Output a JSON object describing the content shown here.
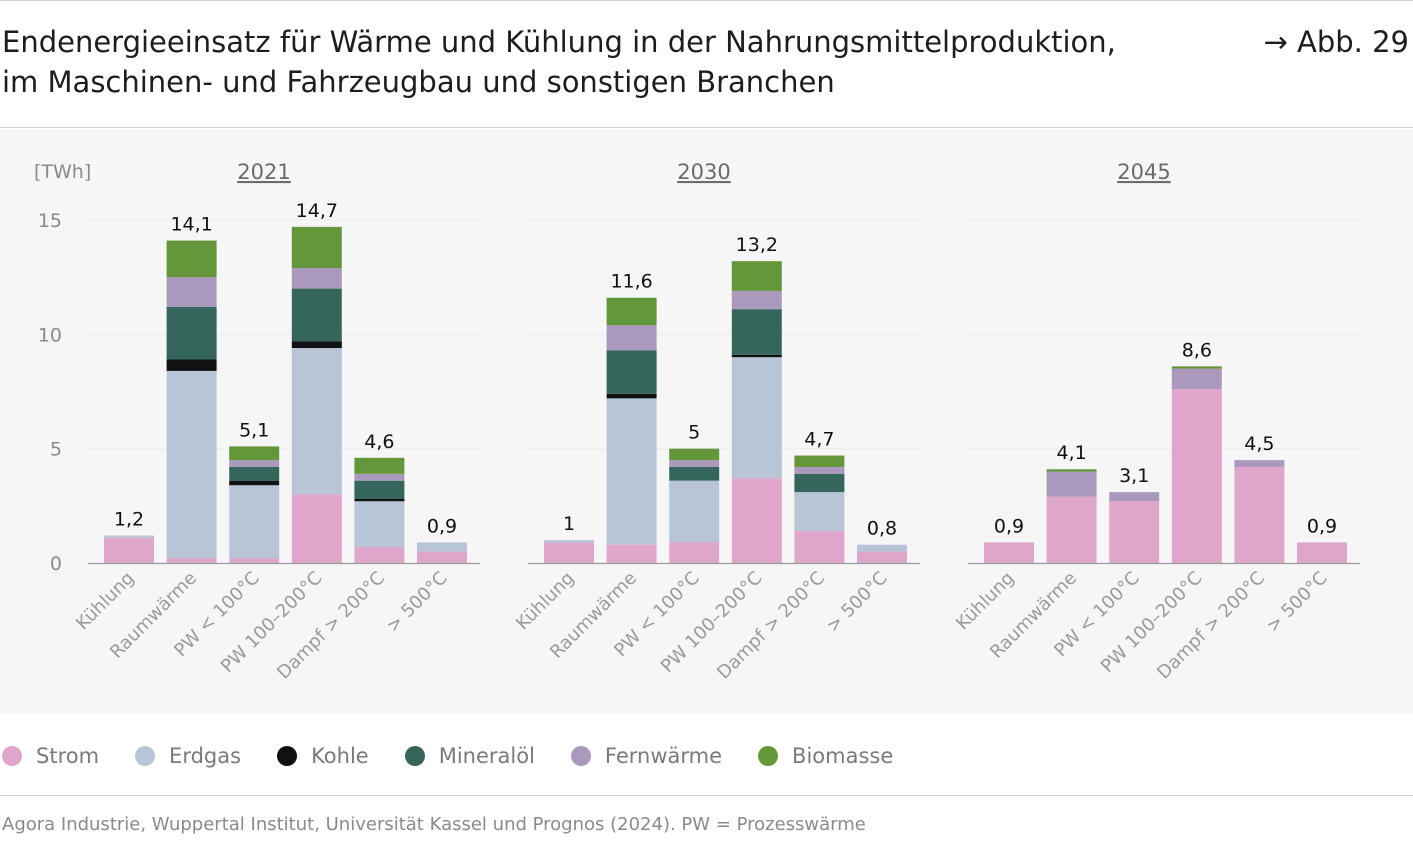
{
  "header": {
    "title_line1": "Endenergieeinsatz für Wärme und Kühlung in der Nahrungsmittelproduktion,",
    "title_line2": "im Maschinen- und Fahrzeugbau und sonstigen Branchen",
    "figure_ref": "→ Abb. 29"
  },
  "source": "Agora Industrie, Wuppertal Institut, Universität Kassel und Prognos (2024). PW = Prozesswärme",
  "colors": {
    "Strom": "#dfa5cb",
    "Erdgas": "#b8c5d6",
    "Kohle": "#111111",
    "Mineralöl": "#35665c",
    "Fernwärme": "#ab98bd",
    "Biomasse": "#64963a"
  },
  "chart_data": {
    "type": "bar",
    "stacked": true,
    "unit_label": "[TWh]",
    "ylim": [
      0,
      15
    ],
    "yticks": [
      0,
      5,
      10,
      15
    ],
    "grid": true,
    "legend_position": "bottom",
    "categories": [
      "Kühlung",
      "Raumwärme",
      "PW < 100°C",
      "PW 100–200°C",
      "Dampf > 200°C",
      "> 500°C"
    ],
    "series_names": [
      "Strom",
      "Erdgas",
      "Kohle",
      "Mineralöl",
      "Fernwärme",
      "Biomasse"
    ],
    "panels": [
      {
        "year": "2021",
        "totals": [
          "1,2",
          "14,1",
          "5,1",
          "14,7",
          "4,6",
          "0,9"
        ],
        "series": [
          {
            "name": "Strom",
            "values": [
              1.1,
              0.2,
              0.2,
              3.0,
              0.7,
              0.5
            ]
          },
          {
            "name": "Erdgas",
            "values": [
              0.1,
              8.2,
              3.2,
              6.4,
              2.0,
              0.4
            ]
          },
          {
            "name": "Kohle",
            "values": [
              0.0,
              0.5,
              0.2,
              0.3,
              0.1,
              0.0
            ]
          },
          {
            "name": "Mineralöl",
            "values": [
              0.0,
              2.3,
              0.6,
              2.3,
              0.8,
              0.0
            ]
          },
          {
            "name": "Fernwärme",
            "values": [
              0.0,
              1.3,
              0.3,
              0.9,
              0.3,
              0.0
            ]
          },
          {
            "name": "Biomasse",
            "values": [
              0.0,
              1.6,
              0.6,
              1.8,
              0.7,
              0.0
            ]
          }
        ]
      },
      {
        "year": "2030",
        "totals": [
          "1",
          "11,6",
          "5",
          "13,2",
          "4,7",
          "0,8"
        ],
        "series": [
          {
            "name": "Strom",
            "values": [
              0.9,
              0.8,
              0.9,
              3.7,
              1.4,
              0.5
            ]
          },
          {
            "name": "Erdgas",
            "values": [
              0.1,
              6.4,
              2.7,
              5.3,
              1.7,
              0.3
            ]
          },
          {
            "name": "Kohle",
            "values": [
              0.0,
              0.2,
              0.0,
              0.1,
              0.0,
              0.0
            ]
          },
          {
            "name": "Mineralöl",
            "values": [
              0.0,
              1.9,
              0.6,
              2.0,
              0.8,
              0.0
            ]
          },
          {
            "name": "Fernwärme",
            "values": [
              0.0,
              1.1,
              0.3,
              0.8,
              0.3,
              0.0
            ]
          },
          {
            "name": "Biomasse",
            "values": [
              0.0,
              1.2,
              0.5,
              1.3,
              0.5,
              0.0
            ]
          }
        ]
      },
      {
        "year": "2045",
        "totals": [
          "0,9",
          "4,1",
          "3,1",
          "8,6",
          "4,5",
          "0,9"
        ],
        "series": [
          {
            "name": "Strom",
            "values": [
              0.9,
              2.9,
              2.7,
              7.6,
              4.2,
              0.9
            ]
          },
          {
            "name": "Erdgas",
            "values": [
              0.0,
              0.0,
              0.0,
              0.0,
              0.0,
              0.0
            ]
          },
          {
            "name": "Kohle",
            "values": [
              0.0,
              0.0,
              0.0,
              0.0,
              0.0,
              0.0
            ]
          },
          {
            "name": "Mineralöl",
            "values": [
              0.0,
              0.0,
              0.0,
              0.0,
              0.0,
              0.0
            ]
          },
          {
            "name": "Fernwärme",
            "values": [
              0.0,
              1.1,
              0.4,
              0.9,
              0.3,
              0.0
            ]
          },
          {
            "name": "Biomasse",
            "values": [
              0.0,
              0.1,
              0.0,
              0.1,
              0.0,
              0.0
            ]
          }
        ]
      }
    ]
  }
}
